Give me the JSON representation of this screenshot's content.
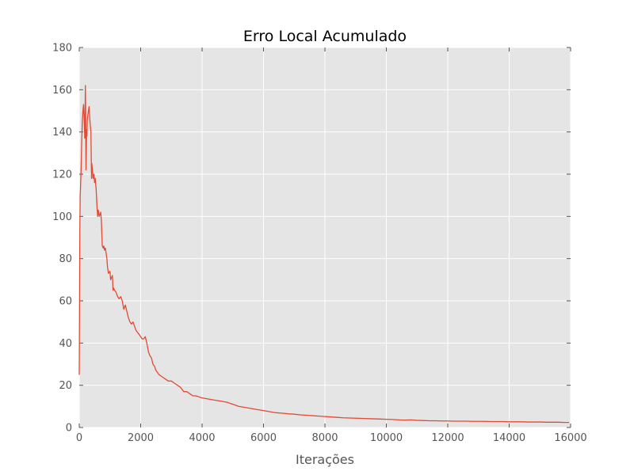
{
  "chart_data": {
    "type": "line",
    "title": "Erro Local Acumulado",
    "xlabel": "Iterações",
    "ylabel": "",
    "xlim": [
      0,
      16000
    ],
    "ylim": [
      0,
      180
    ],
    "xticks": [
      0,
      2000,
      4000,
      6000,
      8000,
      10000,
      12000,
      14000,
      16000
    ],
    "yticks": [
      0,
      20,
      40,
      60,
      80,
      100,
      120,
      140,
      160,
      180
    ],
    "grid": true,
    "legend": "none",
    "colors": {
      "line": "#e24a33",
      "plot_background": "#e5e5e5",
      "grid": "#ffffff"
    },
    "series": [
      {
        "x": [
          0,
          10,
          20,
          30,
          40,
          60,
          80,
          100,
          120,
          140,
          160,
          180,
          200,
          210,
          220,
          240,
          250,
          260,
          280,
          300,
          320,
          340,
          360,
          380,
          400,
          410,
          430,
          450,
          480,
          500,
          520,
          550,
          580,
          600,
          620,
          650,
          680,
          700,
          720,
          750,
          780,
          800,
          820,
          850,
          880,
          900,
          920,
          950,
          1000,
          1020,
          1050,
          1080,
          1100,
          1120,
          1150,
          1200,
          1250,
          1300,
          1350,
          1400,
          1450,
          1500,
          1550,
          1600,
          1650,
          1700,
          1750,
          1800,
          1850,
          1900,
          1950,
          2000,
          2050,
          2100,
          2150,
          2200,
          2250,
          2300,
          2350,
          2400,
          2450,
          2500,
          2600,
          2700,
          2800,
          2900,
          3000,
          3100,
          3200,
          3300,
          3400,
          3500,
          3600,
          3700,
          3800,
          4000,
          4200,
          4400,
          4600,
          4800,
          5000,
          5200,
          5400,
          5600,
          5800,
          6000,
          6200,
          6400,
          6600,
          6800,
          7000,
          7200,
          7400,
          7600,
          7800,
          8000,
          8200,
          8400,
          8600,
          8800,
          9000,
          9200,
          9400,
          9600,
          9800,
          10000,
          10200,
          10400,
          10600,
          10800,
          11000,
          11200,
          11400,
          11600,
          11800,
          12000,
          12200,
          12400,
          12600,
          12800,
          13000,
          13200,
          13400,
          13600,
          13800,
          14000,
          14200,
          14400,
          14600,
          14800,
          15000,
          15200,
          15400,
          15600,
          15800,
          15950
        ],
        "y": [
          25,
          60,
          95,
          110,
          113,
          122,
          135,
          145,
          150,
          153,
          146,
          137,
          162,
          145,
          122,
          141,
          138,
          145,
          148,
          150,
          152,
          147,
          143,
          140,
          118,
          125,
          122,
          118,
          120,
          116,
          118,
          113,
          104,
          100,
          103,
          100,
          101,
          102,
          98,
          86,
          85,
          86,
          84,
          85,
          82,
          80,
          76,
          73,
          74,
          70,
          71,
          72,
          65,
          66,
          65,
          64,
          62,
          61,
          62,
          60,
          56,
          58,
          55,
          52,
          50,
          49,
          50,
          48,
          46,
          45,
          44,
          43,
          42,
          42,
          43,
          40,
          36,
          34,
          33,
          30,
          29,
          27,
          25,
          24,
          23,
          22,
          22,
          21,
          20,
          19,
          17,
          17,
          16,
          15,
          15,
          14,
          13.5,
          13,
          12.5,
          12,
          11,
          10,
          9.5,
          9,
          8.5,
          8,
          7.5,
          7,
          6.8,
          6.5,
          6.3,
          6,
          5.8,
          5.6,
          5.4,
          5.2,
          5,
          4.8,
          4.6,
          4.5,
          4.4,
          4.3,
          4.2,
          4.1,
          4,
          3.9,
          3.8,
          3.6,
          3.5,
          3.6,
          3.4,
          3.3,
          3.2,
          3.2,
          3.1,
          3.1,
          3,
          3,
          3,
          2.9,
          2.9,
          2.9,
          2.8,
          2.8,
          2.8,
          2.7,
          2.7,
          2.7,
          2.6,
          2.6,
          2.6,
          2.5,
          2.5,
          2.5,
          2.4,
          2.4
        ]
      }
    ]
  }
}
